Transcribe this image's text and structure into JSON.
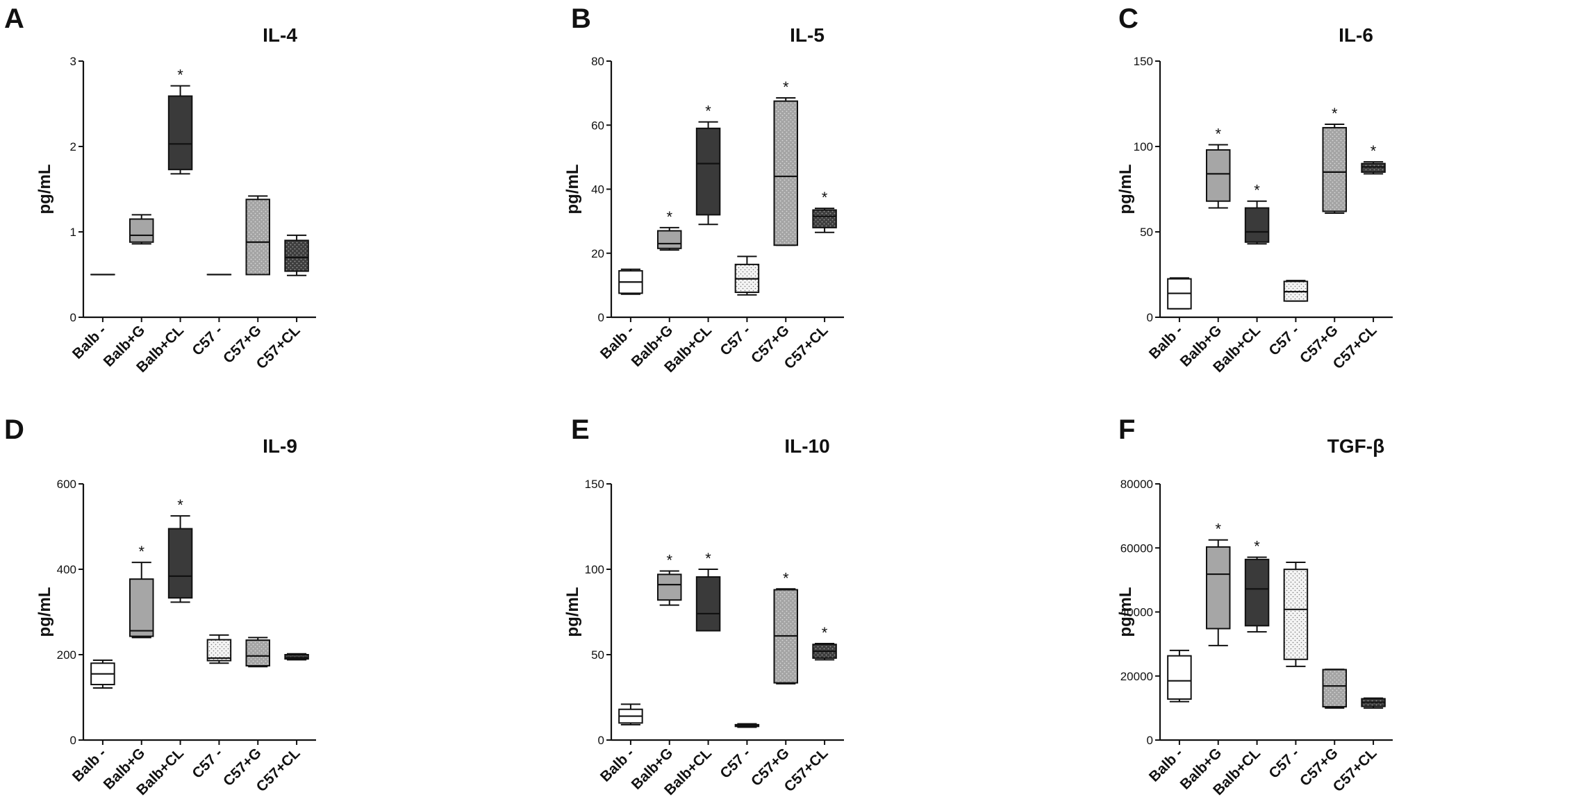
{
  "figure": {
    "colors": {
      "white": "#ffffff",
      "light_gray": "#a6a6a6",
      "dark_gray": "#3a3a3a",
      "dotted": "#f2f2f2",
      "gray_pattern": "#a0a0a0",
      "dark_pattern": "#4a4a4a"
    }
  },
  "chart_data": [
    {
      "letter": "A",
      "type": "box",
      "title": "IL-4",
      "ylabel": "pg/mL",
      "ylim": [
        0,
        3
      ],
      "yticks": [
        "0",
        "1",
        "2",
        "3"
      ],
      "ytick_values": [
        0,
        1,
        2,
        3
      ],
      "categories": [
        "Balb -",
        "Balb+G",
        "Balb+CL",
        "C57 -",
        "C57+G",
        "C57+CL"
      ],
      "boxes": [
        {
          "min": 0.5,
          "q1": 0.5,
          "median": 0.5,
          "q3": 0.5,
          "max": 0.5,
          "fill": "white",
          "sig": false
        },
        {
          "min": 0.86,
          "q1": 0.88,
          "median": 0.96,
          "q3": 1.15,
          "max": 1.2,
          "fill": "light_gray",
          "sig": false
        },
        {
          "min": 1.68,
          "q1": 1.73,
          "median": 2.03,
          "q3": 2.59,
          "max": 2.71,
          "fill": "dark_gray",
          "sig": true
        },
        {
          "min": 0.5,
          "q1": 0.5,
          "median": 0.5,
          "q3": 0.5,
          "max": 0.5,
          "fill": "dotted",
          "sig": false
        },
        {
          "min": 0.5,
          "q1": 0.5,
          "median": 0.88,
          "q3": 1.38,
          "max": 1.42,
          "fill": "gray_pattern",
          "sig": false
        },
        {
          "min": 0.49,
          "q1": 0.54,
          "median": 0.7,
          "q3": 0.9,
          "max": 0.96,
          "fill": "dark_pattern",
          "sig": false
        }
      ],
      "sig_symbol": "*"
    },
    {
      "letter": "B",
      "type": "box",
      "title": "IL-5",
      "ylabel": "pg/mL",
      "ylim": [
        0,
        80
      ],
      "yticks": [
        "0",
        "20",
        "40",
        "60",
        "80"
      ],
      "ytick_values": [
        0,
        20,
        40,
        60,
        80
      ],
      "categories": [
        "Balb -",
        "Balb+G",
        "Balb+CL",
        "C57 -",
        "C57+G",
        "C57+CL"
      ],
      "boxes": [
        {
          "min": 7.2,
          "q1": 7.5,
          "median": 11,
          "q3": 14.5,
          "max": 15,
          "fill": "white",
          "sig": false
        },
        {
          "min": 21,
          "q1": 21.5,
          "median": 23,
          "q3": 27,
          "max": 28,
          "fill": "light_gray",
          "sig": true
        },
        {
          "min": 29,
          "q1": 32,
          "median": 48,
          "q3": 59,
          "max": 61,
          "fill": "dark_gray",
          "sig": true
        },
        {
          "min": 7,
          "q1": 7.8,
          "median": 12,
          "q3": 16.5,
          "max": 19,
          "fill": "dotted",
          "sig": false
        },
        {
          "min": 22.5,
          "q1": 22.5,
          "median": 44,
          "q3": 67.5,
          "max": 68.5,
          "fill": "gray_pattern",
          "sig": true
        },
        {
          "min": 26.5,
          "q1": 28,
          "median": 31.5,
          "q3": 33.5,
          "max": 34,
          "fill": "dark_pattern",
          "sig": true
        }
      ],
      "sig_symbol": "*"
    },
    {
      "letter": "C",
      "type": "box",
      "title": "IL-6",
      "ylabel": "pg/mL",
      "ylim": [
        0,
        150
      ],
      "yticks": [
        "0",
        "50",
        "100",
        "150"
      ],
      "ytick_values": [
        0,
        50,
        100,
        150
      ],
      "categories": [
        "Balb -",
        "Balb+G",
        "Balb+CL",
        "C57 -",
        "C57+G",
        "C57+CL"
      ],
      "boxes": [
        {
          "min": 5,
          "q1": 5,
          "median": 14,
          "q3": 22.5,
          "max": 23,
          "fill": "white",
          "sig": false
        },
        {
          "min": 64,
          "q1": 68,
          "median": 84,
          "q3": 98,
          "max": 101,
          "fill": "light_gray",
          "sig": true
        },
        {
          "min": 43,
          "q1": 44,
          "median": 50,
          "q3": 64,
          "max": 68,
          "fill": "dark_gray",
          "sig": true
        },
        {
          "min": 9.5,
          "q1": 9.5,
          "median": 15,
          "q3": 21,
          "max": 21.5,
          "fill": "dotted",
          "sig": false
        },
        {
          "min": 61,
          "q1": 62,
          "median": 85,
          "q3": 111,
          "max": 113,
          "fill": "gray_pattern",
          "sig": true
        },
        {
          "min": 84,
          "q1": 85,
          "median": 88,
          "q3": 90,
          "max": 91,
          "fill": "dark_pattern",
          "sig": true
        }
      ],
      "sig_symbol": "*"
    },
    {
      "letter": "D",
      "type": "box",
      "title": "IL-9",
      "ylabel": "pg/mL",
      "ylim": [
        0,
        600
      ],
      "yticks": [
        "0",
        "200",
        "400",
        "600"
      ],
      "ytick_values": [
        0,
        200,
        400,
        600
      ],
      "categories": [
        "Balb -",
        "Balb+G",
        "Balb+CL",
        "C57 -",
        "C57+G",
        "C57+CL"
      ],
      "boxes": [
        {
          "min": 122,
          "q1": 130,
          "median": 155,
          "q3": 180,
          "max": 187,
          "fill": "white",
          "sig": false
        },
        {
          "min": 240,
          "q1": 243,
          "median": 256,
          "q3": 377,
          "max": 416,
          "fill": "light_gray",
          "sig": true
        },
        {
          "min": 323,
          "q1": 333,
          "median": 384,
          "q3": 495,
          "max": 525,
          "fill": "dark_gray",
          "sig": true
        },
        {
          "min": 180,
          "q1": 186,
          "median": 192,
          "q3": 235,
          "max": 246,
          "fill": "dotted",
          "sig": false
        },
        {
          "min": 172,
          "q1": 174,
          "median": 197,
          "q3": 234,
          "max": 240,
          "fill": "gray_pattern",
          "sig": false
        },
        {
          "min": 188,
          "q1": 190,
          "median": 193,
          "q3": 200,
          "max": 202,
          "fill": "dark_pattern",
          "sig": false
        }
      ],
      "sig_symbol": "*"
    },
    {
      "letter": "E",
      "type": "box",
      "title": "IL-10",
      "ylabel": "pg/mL",
      "ylim": [
        0,
        150
      ],
      "yticks": [
        "0",
        "50",
        "100",
        "150"
      ],
      "ytick_values": [
        0,
        50,
        100,
        150
      ],
      "categories": [
        "Balb -",
        "Balb+G",
        "Balb+CL",
        "C57 -",
        "C57+G",
        "C57+CL"
      ],
      "boxes": [
        {
          "min": 9,
          "q1": 10,
          "median": 14,
          "q3": 18,
          "max": 21,
          "fill": "white",
          "sig": false
        },
        {
          "min": 79,
          "q1": 82,
          "median": 91,
          "q3": 97,
          "max": 99,
          "fill": "light_gray",
          "sig": true
        },
        {
          "min": 64,
          "q1": 64,
          "median": 74,
          "q3": 95.5,
          "max": 100,
          "fill": "dark_gray",
          "sig": true
        },
        {
          "min": 7.5,
          "q1": 8,
          "median": 8.5,
          "q3": 9,
          "max": 9.5,
          "fill": "dotted",
          "sig": false
        },
        {
          "min": 33,
          "q1": 33.5,
          "median": 61,
          "q3": 88,
          "max": 88.5,
          "fill": "gray_pattern",
          "sig": true
        },
        {
          "min": 47,
          "q1": 48,
          "median": 52,
          "q3": 56,
          "max": 56.5,
          "fill": "dark_pattern",
          "sig": true
        }
      ],
      "sig_symbol": "*"
    },
    {
      "letter": "F",
      "type": "box",
      "title": "TGF-β",
      "ylabel": "pg/mL",
      "ylim": [
        0,
        80000
      ],
      "yticks": [
        "0",
        "20000",
        "40000",
        "60000",
        "80000"
      ],
      "ytick_values": [
        0,
        20000,
        40000,
        60000,
        80000
      ],
      "categories": [
        "Balb -",
        "Balb+G",
        "Balb+CL",
        "C57 -",
        "C57+G",
        "C57+CL"
      ],
      "boxes": [
        {
          "min": 12000,
          "q1": 12800,
          "median": 18500,
          "q3": 26300,
          "max": 28000,
          "fill": "white",
          "sig": false
        },
        {
          "min": 29500,
          "q1": 34800,
          "median": 51800,
          "q3": 60300,
          "max": 62500,
          "fill": "light_gray",
          "sig": true
        },
        {
          "min": 33800,
          "q1": 35700,
          "median": 47200,
          "q3": 56400,
          "max": 57100,
          "fill": "dark_gray",
          "sig": true
        },
        {
          "min": 23000,
          "q1": 25200,
          "median": 40800,
          "q3": 53300,
          "max": 55500,
          "fill": "dotted",
          "sig": false
        },
        {
          "min": 10000,
          "q1": 10400,
          "median": 16900,
          "q3": 22000,
          "max": 22100,
          "fill": "gray_pattern",
          "sig": false
        },
        {
          "min": 10000,
          "q1": 10500,
          "median": 11800,
          "q3": 12900,
          "max": 13100,
          "fill": "dark_pattern",
          "sig": false
        }
      ],
      "sig_symbol": "*"
    }
  ]
}
